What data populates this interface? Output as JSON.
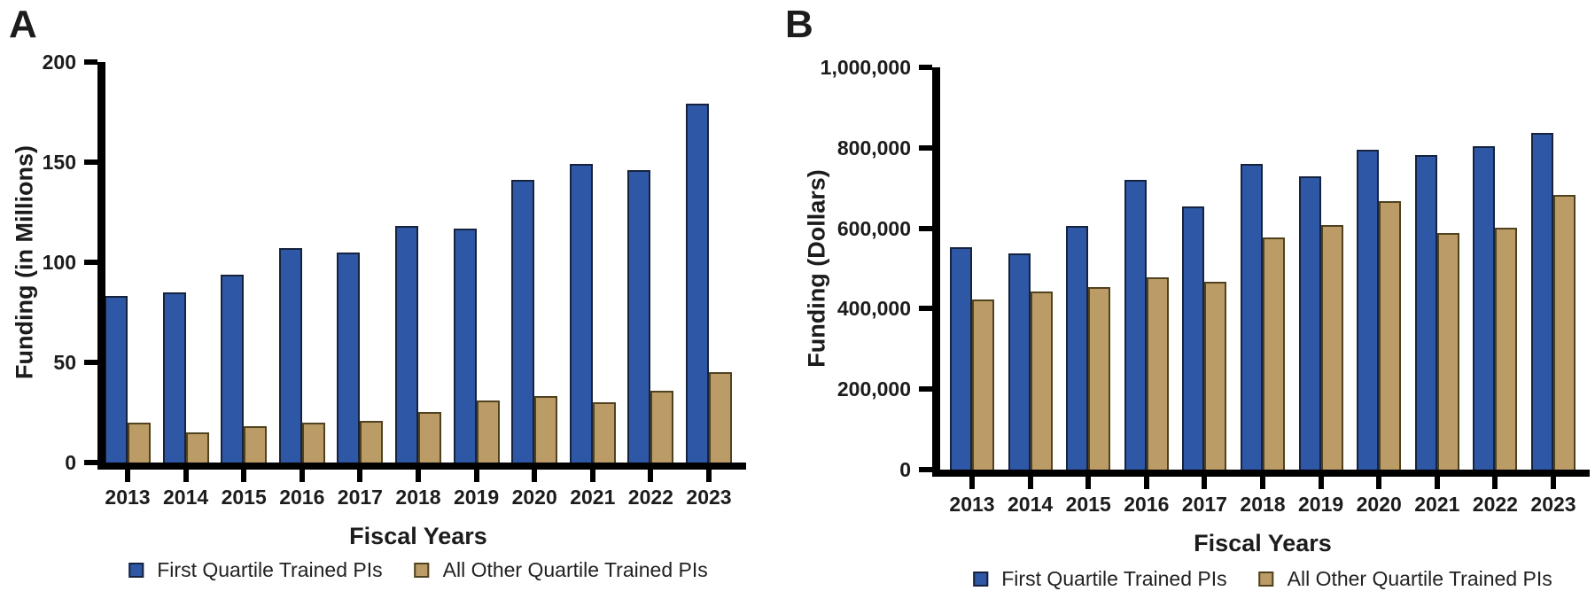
{
  "chart_data": [
    {
      "type": "bar",
      "panel": "A",
      "ylabel": "Funding (in Millions)",
      "xlabel": "Fiscal Years",
      "ylim": [
        0,
        200
      ],
      "grid": false,
      "legend_position": "bottom",
      "yticks": [
        {
          "value": 0,
          "label": "0"
        },
        {
          "value": 50,
          "label": "50"
        },
        {
          "value": 100,
          "label": "100"
        },
        {
          "value": 150,
          "label": "150"
        },
        {
          "value": 200,
          "label": "200"
        }
      ],
      "categories": [
        "2013",
        "2014",
        "2015",
        "2016",
        "2017",
        "2018",
        "2019",
        "2020",
        "2021",
        "2022",
        "2023"
      ],
      "series": [
        {
          "name": "First Quartile Trained PIs",
          "color": "#2e57a5",
          "border": "#16233e",
          "values": [
            83,
            85,
            94,
            107,
            105,
            118,
            117,
            141,
            149,
            146,
            179
          ]
        },
        {
          "name": "All Other Quartile Trained PIs",
          "color": "#bb9c66",
          "border": "#50421f",
          "values": [
            20,
            15,
            18,
            20,
            21,
            25,
            31,
            33,
            30,
            36,
            45
          ]
        }
      ]
    },
    {
      "type": "bar",
      "panel": "B",
      "ylabel": "Funding (Dollars)",
      "xlabel": "Fiscal Years",
      "ylim": [
        0,
        1000000
      ],
      "grid": false,
      "legend_position": "bottom",
      "yticks": [
        {
          "value": 0,
          "label": "0"
        },
        {
          "value": 200000,
          "label": "200,000"
        },
        {
          "value": 400000,
          "label": "400,000"
        },
        {
          "value": 600000,
          "label": "600,000"
        },
        {
          "value": 800000,
          "label": "800,000"
        },
        {
          "value": 1000000,
          "label": "1,000,000"
        }
      ],
      "categories": [
        "2013",
        "2014",
        "2015",
        "2016",
        "2017",
        "2018",
        "2019",
        "2020",
        "2021",
        "2022",
        "2023"
      ],
      "series": [
        {
          "name": "First Quartile Trained PIs",
          "color": "#2e57a5",
          "border": "#16233e",
          "values": [
            553000,
            538000,
            606000,
            720000,
            654000,
            761000,
            730000,
            796000,
            781000,
            803000,
            838000
          ]
        },
        {
          "name": "All Other Quartile Trained PIs",
          "color": "#bb9c66",
          "border": "#50421f",
          "values": [
            424000,
            443000,
            453000,
            479000,
            467000,
            576000,
            607000,
            668000,
            588000,
            601000,
            683000
          ]
        }
      ]
    }
  ]
}
